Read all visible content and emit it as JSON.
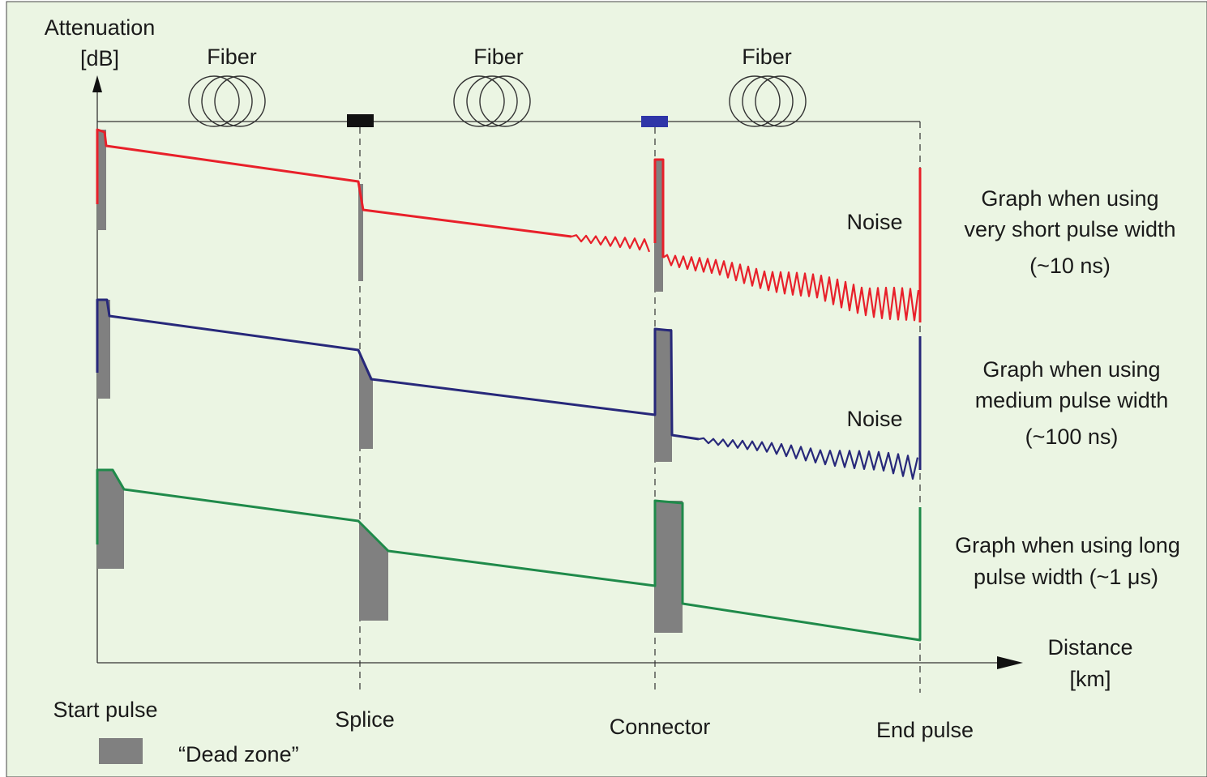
{
  "axes": {
    "y_label_line1": "Attenuation",
    "y_label_line2": "[dB]",
    "x_label_line1": "Distance",
    "x_label_line2": "[km]"
  },
  "fiber_labels": [
    "Fiber",
    "Fiber",
    "Fiber"
  ],
  "events": {
    "start": "Start pulse",
    "splice": "Splice",
    "connector": "Connector",
    "end": "End pulse"
  },
  "traces": [
    {
      "label_lines": [
        "Graph when using",
        "very short pulse width",
        "(~10 ns)"
      ],
      "noise_label": "Noise"
    },
    {
      "label_lines": [
        "Graph when using",
        "medium pulse width",
        "(~100 ns)"
      ],
      "noise_label": "Noise"
    },
    {
      "label_lines": [
        "Graph when using long",
        "pulse width (~1 μs)"
      ]
    }
  ],
  "legend": {
    "dead_zone": "“Dead zone”"
  },
  "colors": {
    "background": "#ebf5e3",
    "short_pulse": "#e8202a",
    "medium_pulse": "#27287a",
    "long_pulse": "#1f8a4a",
    "dead_zone": "#808080",
    "splice_marker": "#111111",
    "connector_marker": "#2f35a8"
  }
}
